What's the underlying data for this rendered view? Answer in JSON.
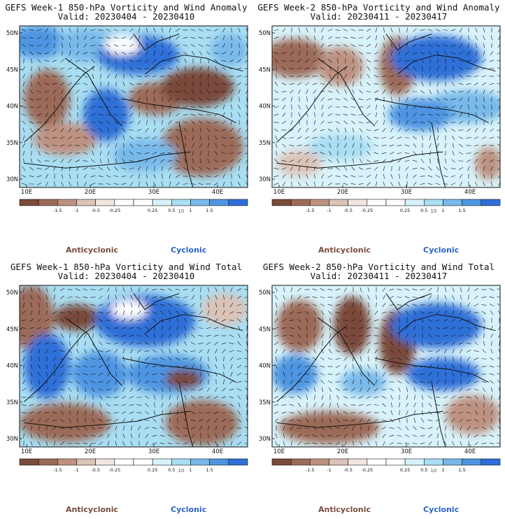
{
  "colors": {
    "anticyclonic_label": "#7a4a3a",
    "cyclonic_label": "#2a62c9",
    "scale": [
      "#7a4a3a",
      "#9c6b58",
      "#bd9281",
      "#dcc3b8",
      "#f1e6e0",
      "#ffffff",
      "#ffffff",
      "#d8f3fb",
      "#a9def3",
      "#78b9ea",
      "#4e95e2",
      "#2e6fd8"
    ]
  },
  "panels": [
    {
      "id": "week1-anomaly",
      "title_line1": "GEFS Week-1 850-hPa Vorticity and Wind Anomaly",
      "title_line2": "Valid: 20230404 - 20230410",
      "latitudes": [
        "50N",
        "45N",
        "40N",
        "35N",
        "30N"
      ],
      "longitudes": [
        "10E",
        "20E",
        "30E",
        "40E"
      ],
      "colorbar_ticks": [
        "-1.5",
        "-1",
        "-0.5",
        "-0.25",
        "0.25",
        "0.5",
        "1",
        "1.5"
      ],
      "scale_note": "10",
      "anticyclonic_label": "Anticyclonic",
      "cyclonic_label": "Cyclonic"
    },
    {
      "id": "week2-anomaly",
      "title_line1": "GEFS Week-2 850-hPa Vorticity and Wind Anomaly",
      "title_line2": "Valid: 20230411 - 20230417",
      "latitudes": [
        "50N",
        "45N",
        "40N",
        "35N",
        "30N"
      ],
      "longitudes": [
        "10E",
        "20E",
        "30E",
        "40E"
      ],
      "colorbar_ticks": [
        "-1.5",
        "-1",
        "-0.5",
        "-0.25",
        "0.25",
        "0.5",
        "1",
        "1.5"
      ],
      "scale_note": "10",
      "anticyclonic_label": "Anticyclonic",
      "cyclonic_label": "Cyclonic"
    },
    {
      "id": "week1-total",
      "title_line1": "GEFS Week-1 850-hPa Vorticity and Wind Total",
      "title_line2": "Valid: 20230404 - 20230410",
      "latitudes": [
        "50N",
        "45N",
        "40N",
        "35N",
        "30N"
      ],
      "longitudes": [
        "10E",
        "20E",
        "30E",
        "40E"
      ],
      "colorbar_ticks": [
        "-1.5",
        "-1",
        "-0.5",
        "-0.25",
        "0.25",
        "0.5",
        "1",
        "1.5"
      ],
      "scale_note": "10",
      "anticyclonic_label": "Anticyclonic",
      "cyclonic_label": "Cyclonic"
    },
    {
      "id": "week2-total",
      "title_line1": "GEFS Week-2 850-hPa Vorticity and Wind Total",
      "title_line2": "Valid: 20230411 - 20230417",
      "latitudes": [
        "50N",
        "45N",
        "40N",
        "35N",
        "30N"
      ],
      "longitudes": [
        "10E",
        "20E",
        "30E",
        "40E"
      ],
      "colorbar_ticks": [
        "-1.5",
        "-1",
        "-0.5",
        "-0.25",
        "0.25",
        "0.5",
        "1",
        "1.5"
      ],
      "scale_note": "10",
      "anticyclonic_label": "Anticyclonic",
      "cyclonic_label": "Cyclonic"
    }
  ]
}
